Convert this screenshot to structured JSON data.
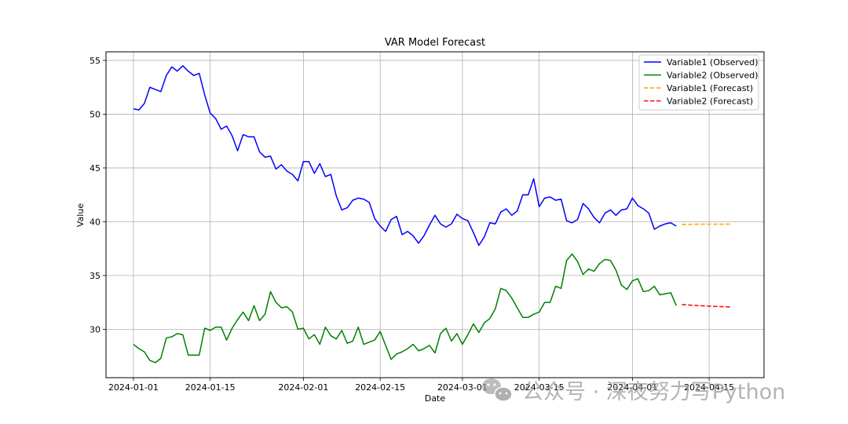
{
  "chart_data": {
    "type": "line",
    "title": "VAR Model Forecast",
    "xlabel": "Date",
    "ylabel": "Value",
    "x_ticks": [
      "2024-01-01",
      "2024-01-15",
      "2024-02-01",
      "2024-02-15",
      "2024-03-01",
      "2024-03-15",
      "2024-04-01",
      "2024-04-15"
    ],
    "y_ticks": [
      30,
      35,
      40,
      45,
      50,
      55
    ],
    "xlim": [
      "2023-12-27",
      "2024-04-25"
    ],
    "ylim": [
      25.5,
      55.8
    ],
    "grid": true,
    "legend_position": "top-right",
    "series": [
      {
        "name": "Variable1 (Observed)",
        "color": "#0000ff",
        "style": "solid",
        "start_date": "2024-01-01",
        "values": [
          50.5,
          50.4,
          51.0,
          52.5,
          52.3,
          52.1,
          53.6,
          54.4,
          54.0,
          54.5,
          54.0,
          53.6,
          53.8,
          51.8,
          50.1,
          49.6,
          48.6,
          48.9,
          48.0,
          46.6,
          48.1,
          47.9,
          47.9,
          46.5,
          46.0,
          46.1,
          44.9,
          45.3,
          44.7,
          44.4,
          43.8,
          45.6,
          45.6,
          44.5,
          45.4,
          44.2,
          44.4,
          42.4,
          41.1,
          41.3,
          42.0,
          42.2,
          42.1,
          41.8,
          40.3,
          39.6,
          39.1,
          40.2,
          40.5,
          38.8,
          39.1,
          38.7,
          38.0,
          38.7,
          39.7,
          40.6,
          39.8,
          39.5,
          39.8,
          40.7,
          40.3,
          40.1,
          39.0,
          37.8,
          38.6,
          39.9,
          39.8,
          40.9,
          41.2,
          40.6,
          41.0,
          42.5,
          42.5,
          44.0,
          41.4,
          42.2,
          42.3,
          42.0,
          42.1,
          40.1,
          39.9,
          40.2,
          41.7,
          41.2,
          40.4,
          39.9,
          40.8,
          41.1,
          40.6,
          41.1,
          41.2,
          42.2,
          41.5,
          41.2,
          40.8,
          39.3,
          39.6,
          39.8,
          39.9,
          39.6
        ]
      },
      {
        "name": "Variable2 (Observed)",
        "color": "#008000",
        "style": "solid",
        "start_date": "2024-01-01",
        "values": [
          28.6,
          28.2,
          27.9,
          27.1,
          26.9,
          27.3,
          29.2,
          29.3,
          29.6,
          29.5,
          27.6,
          27.6,
          27.6,
          30.1,
          29.9,
          30.2,
          30.2,
          29.0,
          30.1,
          30.9,
          31.6,
          30.8,
          32.2,
          30.8,
          31.4,
          33.5,
          32.5,
          32.0,
          32.1,
          31.6,
          30.0,
          30.1,
          29.1,
          29.5,
          28.6,
          30.2,
          29.4,
          29.1,
          29.9,
          28.7,
          28.9,
          30.2,
          28.6,
          28.8,
          29.0,
          29.8,
          28.5,
          27.2,
          27.7,
          27.9,
          28.2,
          28.6,
          28.0,
          28.2,
          28.5,
          27.8,
          29.6,
          30.1,
          28.9,
          29.6,
          28.6,
          29.5,
          30.5,
          29.7,
          30.6,
          31.0,
          31.9,
          33.8,
          33.6,
          32.9,
          32.0,
          31.1,
          31.1,
          31.4,
          31.6,
          32.5,
          32.5,
          34.0,
          33.8,
          36.4,
          37.0,
          36.3,
          35.1,
          35.6,
          35.4,
          36.1,
          36.5,
          36.4,
          35.5,
          34.1,
          33.7,
          34.5,
          34.7,
          33.5,
          33.6,
          34.0,
          33.2,
          33.3,
          33.4,
          32.2
        ]
      },
      {
        "name": "Variable1 (Forecast)",
        "color": "#ffa500",
        "style": "dashed",
        "start_date": "2024-04-10",
        "values": [
          39.75,
          39.76,
          39.76,
          39.77,
          39.77,
          39.77,
          39.77,
          39.77,
          39.77,
          39.77
        ]
      },
      {
        "name": "Variable2 (Forecast)",
        "color": "#ff0000",
        "style": "dashed",
        "start_date": "2024-04-10",
        "values": [
          32.3,
          32.26,
          32.23,
          32.2,
          32.17,
          32.15,
          32.13,
          32.11,
          32.09,
          32.07
        ]
      }
    ]
  },
  "watermark": {
    "text": "公众号 · 深夜努力写Python",
    "icon": "wechat-icon"
  }
}
